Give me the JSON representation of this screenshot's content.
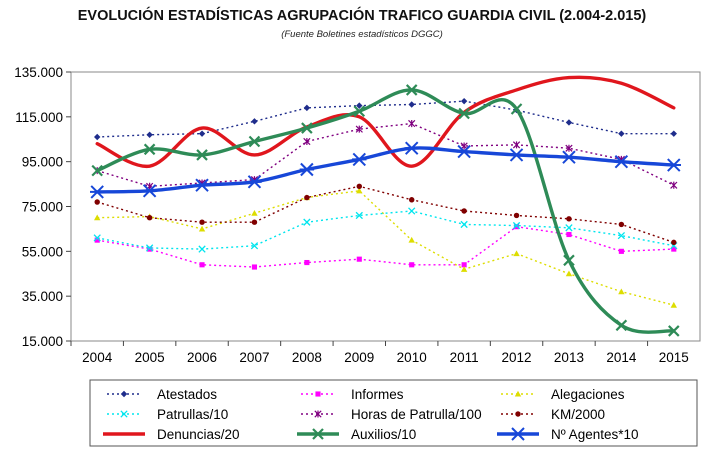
{
  "chart_data": {
    "type": "line",
    "title": "EVOLUCIÓN ESTADÍSTICAS AGRUPACIÓN TRAFICO GUARDIA CIVIL (2.004-2.015)",
    "subtitle": "(Fuente Boletines estadísticos DGGC)",
    "xlabel": "",
    "ylabel": "",
    "categories": [
      "2004",
      "2005",
      "2006",
      "2007",
      "2008",
      "2009",
      "2010",
      "2011",
      "2012",
      "2013",
      "2014",
      "2015"
    ],
    "ylim": [
      15000,
      135000
    ],
    "yticks": [
      15000,
      35000,
      55000,
      75000,
      95000,
      115000,
      135000
    ],
    "ytick_labels": [
      "15.000",
      "35.000",
      "55.000",
      "75.000",
      "95.000",
      "115.000",
      "135.000"
    ],
    "legend_position": "bottom",
    "series": [
      {
        "name": "Atestados",
        "style": "dotted",
        "marker": "diamond",
        "color": "#1f2d8c",
        "values": [
          106000,
          107000,
          107500,
          113000,
          119000,
          120000,
          120500,
          122000,
          118000,
          112500,
          107500,
          107500
        ]
      },
      {
        "name": "Informes",
        "style": "dotted",
        "marker": "square",
        "color": "#ff00ff",
        "values": [
          60000,
          56000,
          49000,
          48000,
          50000,
          51500,
          49000,
          49000,
          66000,
          62500,
          55000,
          56000
        ]
      },
      {
        "name": "Alegaciones",
        "style": "dotted",
        "marker": "triangle",
        "color": "#dddd00",
        "values": [
          70000,
          70500,
          65000,
          72000,
          79000,
          82000,
          60000,
          47000,
          54000,
          45000,
          37000,
          31000
        ]
      },
      {
        "name": "Patrullas/10",
        "style": "dotted",
        "marker": "x",
        "color": "#00e5ee",
        "values": [
          61000,
          56500,
          56000,
          57500,
          68000,
          71000,
          73000,
          67000,
          66500,
          65500,
          62000,
          57500
        ]
      },
      {
        "name": "Horas de Patrulla/100",
        "style": "dotted",
        "marker": "star",
        "color": "#800080",
        "values": [
          91000,
          84000,
          85500,
          87000,
          104000,
          109500,
          112000,
          102000,
          102500,
          101000,
          96000,
          84500
        ]
      },
      {
        "name": "KM/2000",
        "style": "dotted",
        "marker": "circle",
        "color": "#800000",
        "values": [
          77000,
          70000,
          68000,
          68000,
          79000,
          84000,
          78000,
          73000,
          71000,
          69500,
          67000,
          59000
        ]
      },
      {
        "name": "Denuncias/20",
        "style": "solid",
        "marker": "none",
        "color": "#e0161d",
        "values": [
          103000,
          93000,
          110000,
          98000,
          110500,
          115000,
          93000,
          117000,
          127000,
          132500,
          130000,
          119000
        ]
      },
      {
        "name": "Auxilios/10",
        "style": "solid",
        "marker": "x",
        "color": "#2e8b57",
        "values": [
          91000,
          100500,
          98000,
          104000,
          110000,
          117500,
          127000,
          116500,
          118500,
          51000,
          22000,
          19500
        ]
      },
      {
        "name": "Nº Agentes*10",
        "style": "solid",
        "marker": "asterisk",
        "color": "#1747d8",
        "values": [
          81500,
          82000,
          84500,
          86000,
          91500,
          96000,
          101000,
          99500,
          98000,
          97000,
          95000,
          93500
        ]
      }
    ]
  }
}
